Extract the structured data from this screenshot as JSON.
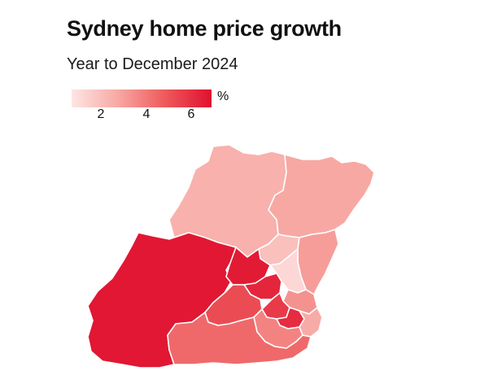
{
  "title": "Sydney home price growth",
  "subtitle": "Year to December 2024",
  "legend": {
    "unit": "%",
    "ticks": [
      "2",
      "4",
      "6"
    ],
    "min": 0.5,
    "max": 6.8,
    "colors": [
      "#fde6e4",
      "#f7a8a3",
      "#ee5a5c",
      "#e0102f"
    ]
  },
  "regions": [
    {
      "id": "hawkesbury",
      "value": 2.3
    },
    {
      "id": "hills-north",
      "value": 1.8
    },
    {
      "id": "central-coast-north",
      "value": 2.6
    },
    {
      "id": "peninsula",
      "value": 2.9
    },
    {
      "id": "west",
      "value": 6.6
    },
    {
      "id": "northwest-mid",
      "value": 6.5
    },
    {
      "id": "parramatta",
      "value": 6.2
    },
    {
      "id": "ryde",
      "value": 1.0
    },
    {
      "id": "north-shore",
      "value": 3.2
    },
    {
      "id": "inner-west",
      "value": 5.6
    },
    {
      "id": "inner-city",
      "value": 6.0
    },
    {
      "id": "southwest",
      "value": 5.1
    },
    {
      "id": "south",
      "value": 3.6
    },
    {
      "id": "sutherland",
      "value": 4.3
    },
    {
      "id": "eastern-suburbs",
      "value": 2.5
    }
  ]
}
